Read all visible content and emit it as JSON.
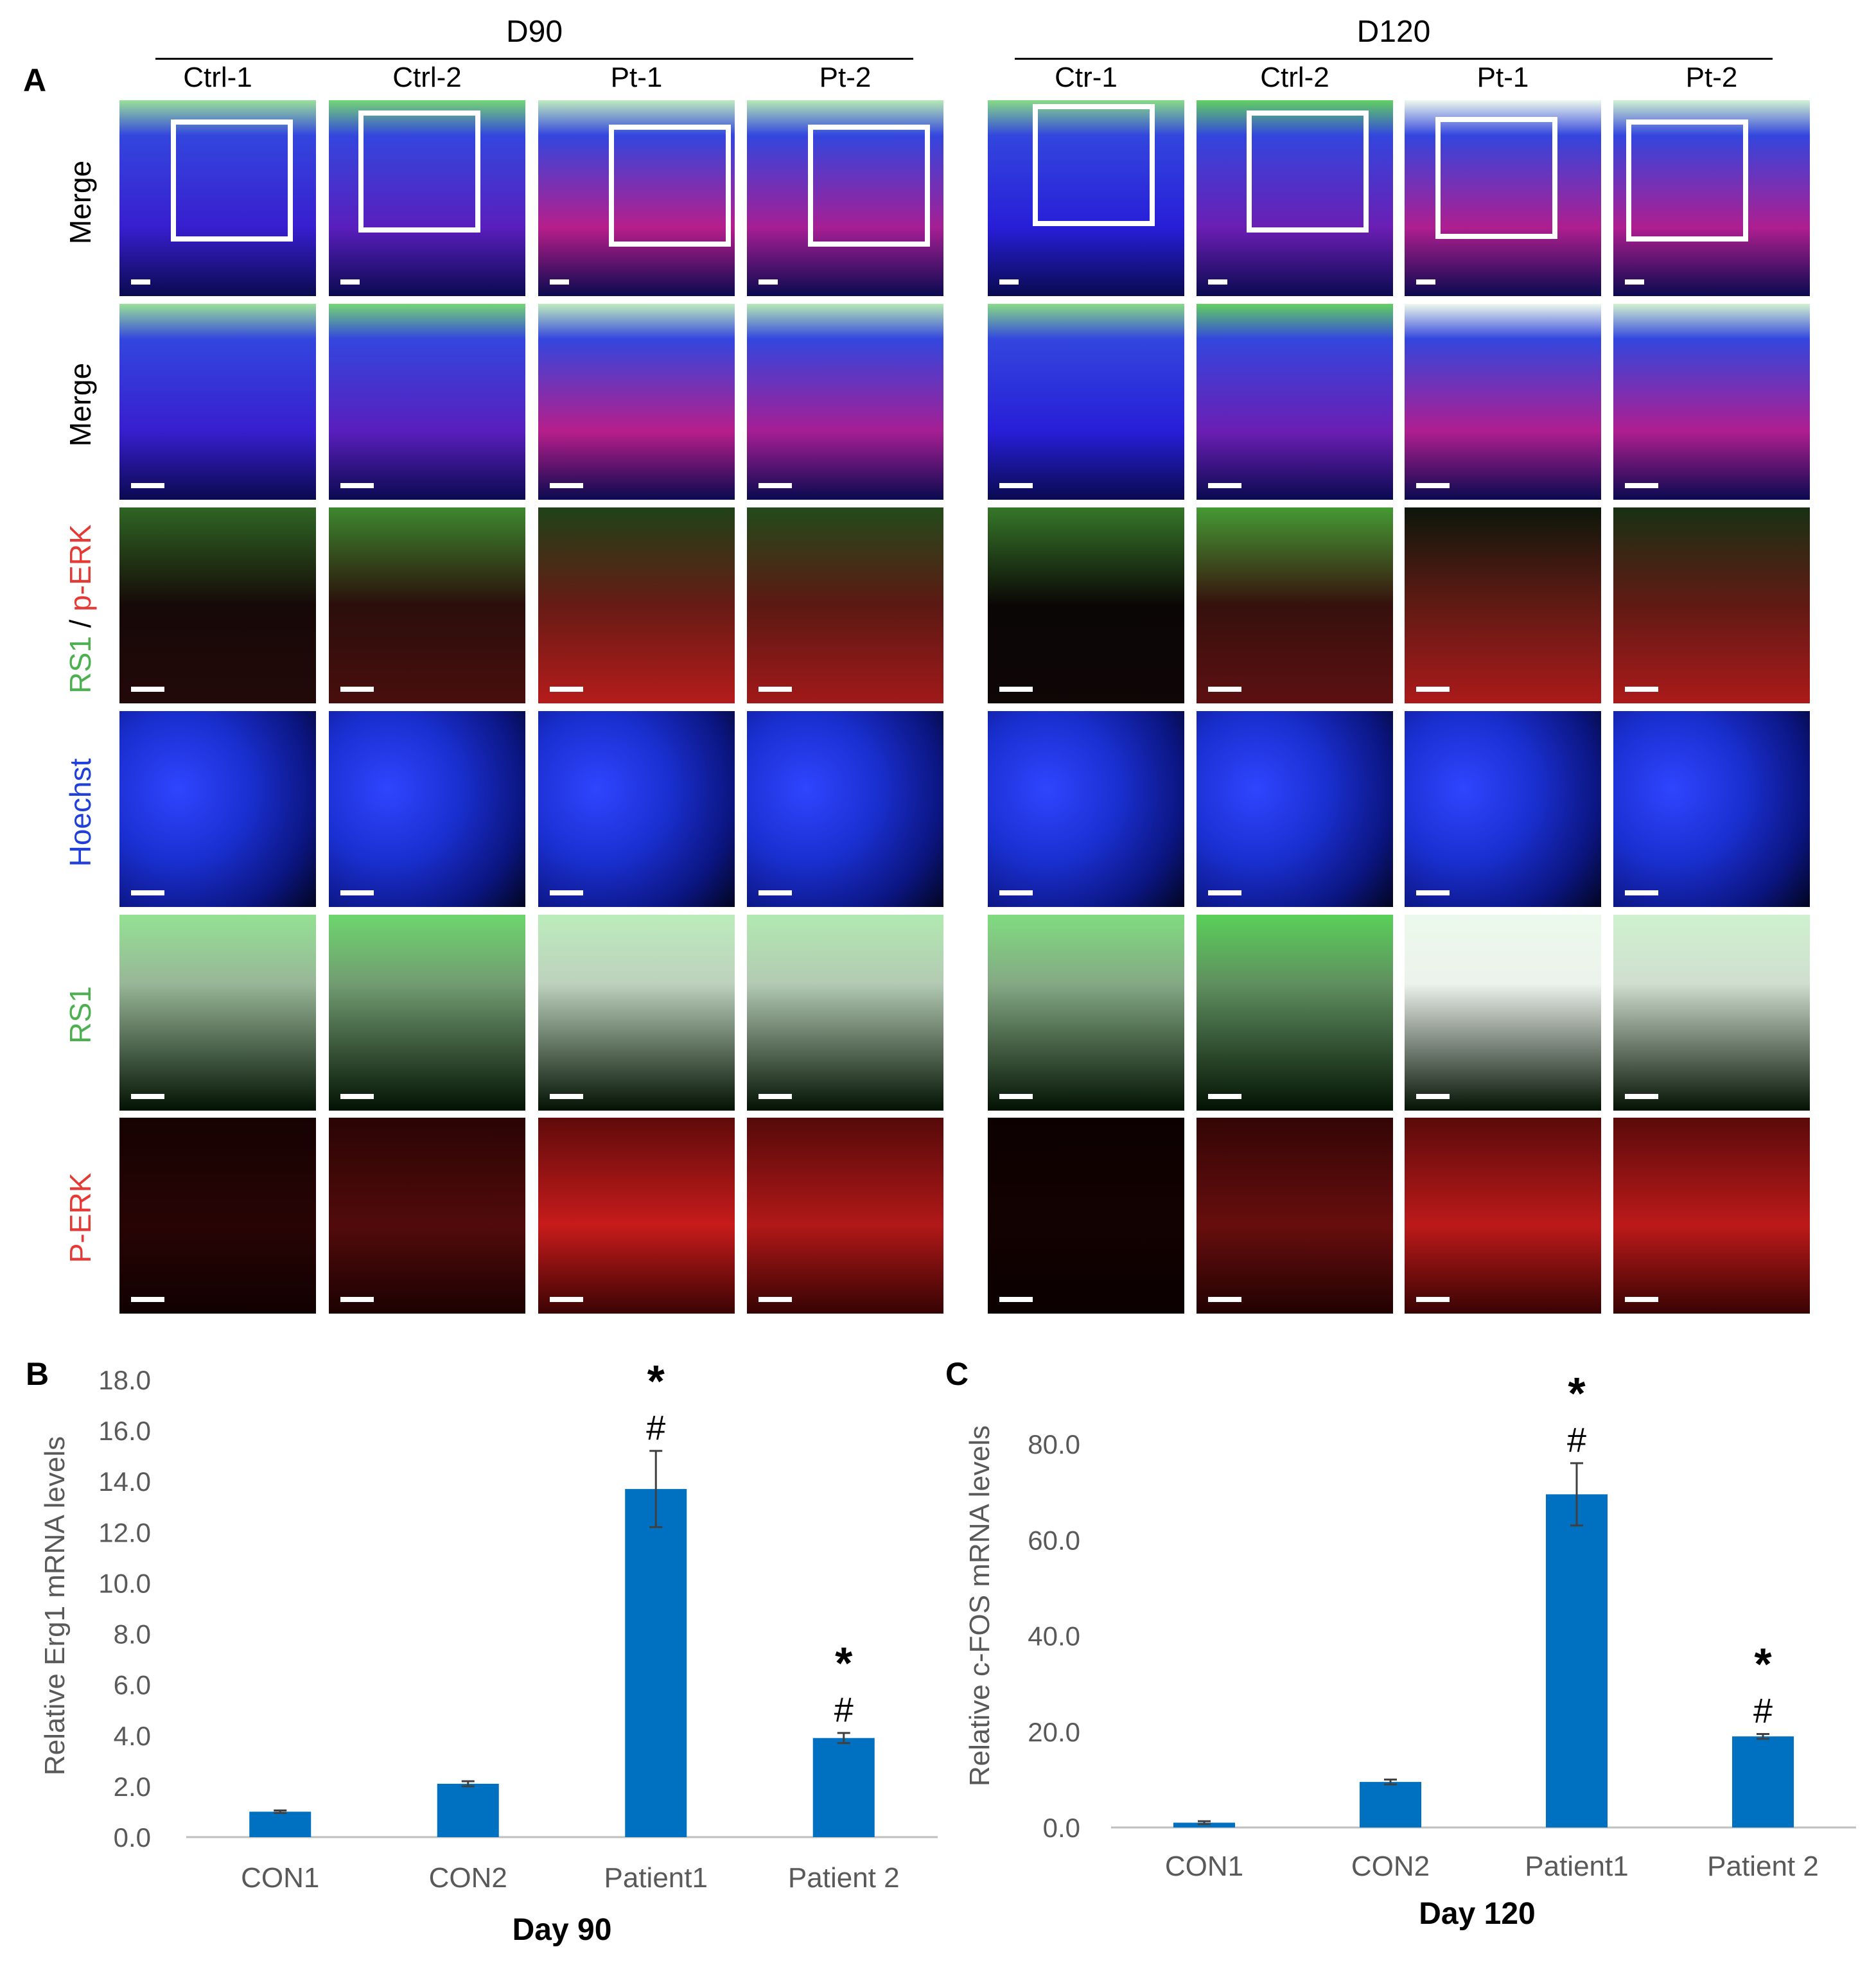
{
  "panel_letters": {
    "a": "A",
    "b": "B",
    "c": "C"
  },
  "figure_a": {
    "groups": [
      {
        "label": "D90",
        "columns": [
          "Ctrl-1",
          "Ctrl-2",
          "Pt-1",
          "Pt-2"
        ]
      },
      {
        "label": "D120",
        "columns": [
          "Ctr-1",
          "Ctrl-2",
          "Pt-1",
          "Pt-2"
        ]
      }
    ],
    "rows": [
      {
        "label": "Merge"
      },
      {
        "label": "Merge"
      },
      {
        "label_part1": "RS1",
        "label_sep": " / ",
        "label_part2": "p-ERK"
      },
      {
        "label": "Hoechst"
      },
      {
        "label": "RS1"
      },
      {
        "label": "P-ERK"
      }
    ],
    "colors": {
      "green": "#4caf50",
      "red": "#e53935",
      "blue": "#1e3fd8",
      "black": "#000000"
    }
  },
  "chart_data": [
    {
      "type": "bar",
      "categories": [
        "CON1",
        "CON2",
        "Patient1",
        "Patient 2"
      ],
      "values": [
        1.0,
        2.1,
        13.7,
        3.9
      ],
      "errors": [
        0.05,
        0.1,
        1.5,
        0.2
      ],
      "annotations": [
        "",
        "",
        "*\n#",
        "*\n#"
      ],
      "xlabel": "Day 90",
      "ylabel": "Relative Erg1 mRNA levels",
      "ylim": [
        0,
        18
      ],
      "yticks": [
        "0.0",
        "2.0",
        "4.0",
        "6.0",
        "8.0",
        "10.0",
        "12.0",
        "14.0",
        "16.0",
        "18.0"
      ],
      "color": "#0070c0"
    },
    {
      "type": "bar",
      "categories": [
        "CON1",
        "CON2",
        "Patient1",
        "Patient 2"
      ],
      "values": [
        1.0,
        9.5,
        69.5,
        19.0
      ],
      "errors": [
        0.3,
        0.5,
        6.5,
        0.5
      ],
      "annotations": [
        "",
        "",
        "*\n#",
        "*\n#"
      ],
      "xlabel": "Day 120",
      "ylabel": "Relative c-FOS mRNA levels",
      "ylim": [
        0,
        80
      ],
      "yticks": [
        "0.0",
        "20.0",
        "40.0",
        "60.0",
        "80.0"
      ],
      "color": "#0070c0"
    }
  ]
}
